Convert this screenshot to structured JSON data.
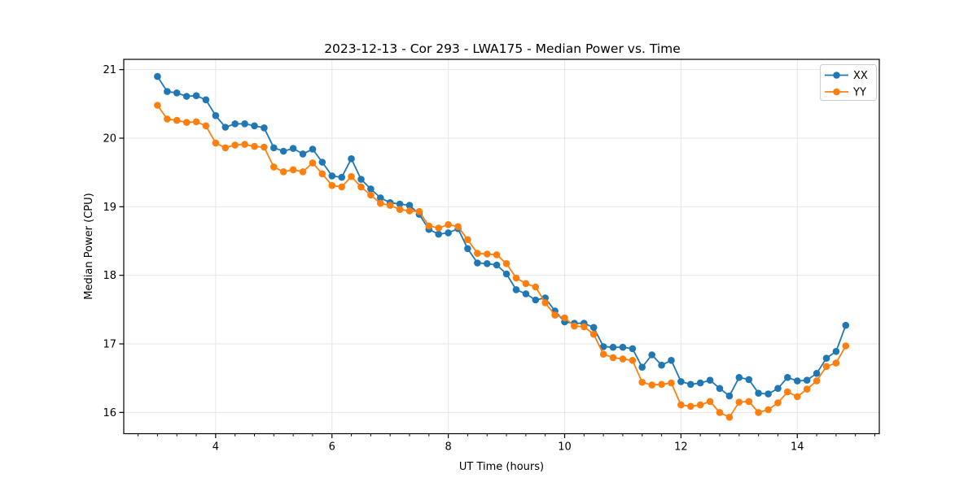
{
  "chart_data": {
    "type": "line",
    "title": "2023-12-13 - Cor 293 - LWA175 - Median Power vs. Time",
    "xlabel": "UT Time (hours)",
    "ylabel": "Median Power (CPU)",
    "xlim": [
      2.42,
      15.41
    ],
    "ylim": [
      15.69,
      21.15
    ],
    "x_ticks": [
      4,
      6,
      8,
      10,
      12,
      14
    ],
    "y_ticks": [
      16,
      17,
      18,
      19,
      20,
      21
    ],
    "x_minor_tick_step": 0.33333,
    "grid": true,
    "grid_color": "#e6e6e6",
    "legend_position": "upper right",
    "x": [
      3.0,
      3.167,
      3.333,
      3.5,
      3.667,
      3.833,
      4.0,
      4.167,
      4.333,
      4.5,
      4.667,
      4.833,
      5.0,
      5.167,
      5.333,
      5.5,
      5.667,
      5.833,
      6.0,
      6.167,
      6.333,
      6.5,
      6.667,
      6.833,
      7.0,
      7.167,
      7.333,
      7.5,
      7.667,
      7.833,
      8.0,
      8.167,
      8.333,
      8.5,
      8.667,
      8.833,
      9.0,
      9.167,
      9.333,
      9.5,
      9.667,
      9.833,
      10.0,
      10.167,
      10.333,
      10.5,
      10.667,
      10.833,
      11.0,
      11.167,
      11.333,
      11.5,
      11.667,
      11.833,
      12.0,
      12.167,
      12.333,
      12.5,
      12.667,
      12.833,
      13.0,
      13.167,
      13.333,
      13.5,
      13.667,
      13.833,
      14.0,
      14.167,
      14.333,
      14.5,
      14.667,
      14.833
    ],
    "series": [
      {
        "name": "XX",
        "color": "#1f77b4",
        "marker": "circle",
        "values": [
          20.9,
          20.68,
          20.66,
          20.61,
          20.62,
          20.56,
          20.33,
          20.16,
          20.21,
          20.21,
          20.18,
          20.15,
          19.86,
          19.81,
          19.85,
          19.77,
          19.84,
          19.65,
          19.45,
          19.43,
          19.7,
          19.4,
          19.26,
          19.13,
          19.06,
          19.04,
          19.02,
          18.89,
          18.67,
          18.6,
          18.62,
          18.68,
          18.39,
          18.18,
          18.17,
          18.15,
          18.02,
          17.79,
          17.73,
          17.64,
          17.67,
          17.48,
          17.32,
          17.3,
          17.3,
          17.24,
          16.96,
          16.95,
          16.95,
          16.93,
          16.66,
          16.84,
          16.69,
          16.76,
          16.45,
          16.41,
          16.43,
          16.47,
          16.35,
          16.24,
          16.51,
          16.48,
          16.28,
          16.27,
          16.35,
          16.51,
          16.46,
          16.47,
          16.57,
          16.79,
          16.89,
          17.27
        ]
      },
      {
        "name": "YY",
        "color": "#ff7f0e",
        "marker": "circle",
        "values": [
          20.48,
          20.28,
          20.26,
          20.23,
          20.24,
          20.18,
          19.93,
          19.86,
          19.9,
          19.91,
          19.88,
          19.87,
          19.58,
          19.51,
          19.54,
          19.51,
          19.64,
          19.48,
          19.31,
          19.29,
          19.44,
          19.29,
          19.17,
          19.05,
          19.02,
          18.96,
          18.94,
          18.93,
          18.72,
          18.69,
          18.74,
          18.71,
          18.52,
          18.32,
          18.31,
          18.3,
          18.17,
          17.96,
          17.88,
          17.83,
          17.6,
          17.42,
          17.38,
          17.26,
          17.25,
          17.14,
          16.85,
          16.8,
          16.78,
          16.76,
          16.44,
          16.4,
          16.41,
          16.43,
          16.11,
          16.09,
          16.11,
          16.16,
          16.0,
          15.93,
          16.15,
          16.16,
          16.0,
          16.04,
          16.14,
          16.3,
          16.23,
          16.34,
          16.46,
          16.67,
          16.72,
          16.97
        ]
      }
    ]
  }
}
